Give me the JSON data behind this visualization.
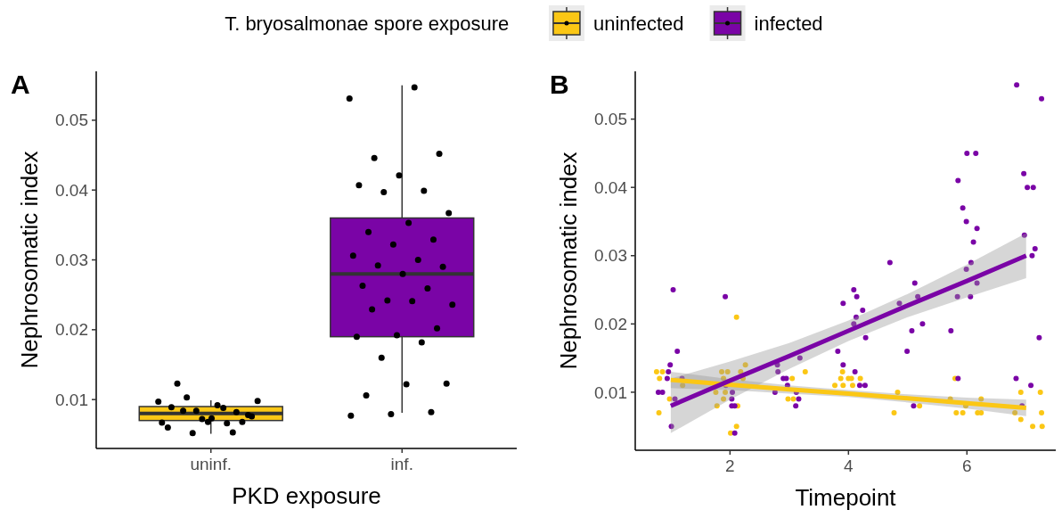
{
  "chart_data": [
    {
      "type": "box",
      "title": "A",
      "xlabel": "PKD exposure",
      "ylabel": "Nephrosomatic index",
      "categories": [
        "uninf.",
        "inf."
      ],
      "colors": [
        "#fbc715",
        "#7a04a6"
      ],
      "boxes": [
        {
          "low": 0.0051,
          "q1": 0.007,
          "median": 0.008,
          "q3": 0.009,
          "high": 0.0099
        },
        {
          "low": 0.0081,
          "q1": 0.019,
          "median": 0.028,
          "q3": 0.036,
          "high": 0.055
        }
      ],
      "series": [
        {
          "type": "scatter",
          "color": "#000000",
          "x": [
            "uninf.",
            "uninf.",
            "uninf.",
            "uninf.",
            "uninf.",
            "uninf.",
            "uninf.",
            "uninf.",
            "uninf.",
            "uninf.",
            "uninf.",
            "uninf.",
            "uninf.",
            "uninf.",
            "uninf.",
            "uninf.",
            "uninf.",
            "uninf.",
            "uninf.",
            "uninf.",
            "uninf."
          ],
          "values": [
            0.0097,
            0.0088,
            0.0084,
            0.0078,
            0.0068,
            0.006,
            0.0053,
            0.0052,
            0.0098,
            0.0092,
            0.0123,
            0.0068,
            0.0072,
            0.0067,
            0.0066,
            0.0103,
            0.0076,
            0.0073,
            0.0089,
            0.0082,
            0.0084
          ]
        },
        {
          "type": "scatter",
          "color": "#000000",
          "x": [
            "inf.",
            "inf.",
            "inf.",
            "inf.",
            "inf.",
            "inf.",
            "inf.",
            "inf.",
            "inf.",
            "inf.",
            "inf.",
            "inf.",
            "inf.",
            "inf.",
            "inf.",
            "inf.",
            "inf.",
            "inf.",
            "inf.",
            "inf.",
            "inf.",
            "inf.",
            "inf.",
            "inf.",
            "inf.",
            "inf.",
            "inf.",
            "inf.",
            "inf.",
            "inf.",
            "inf.",
            "inf.",
            "inf.",
            "inf.",
            "inf."
          ],
          "values": [
            0.0531,
            0.0547,
            0.0446,
            0.0452,
            0.0421,
            0.0407,
            0.0399,
            0.0397,
            0.0367,
            0.0353,
            0.034,
            0.0329,
            0.0322,
            0.0306,
            0.03,
            0.0292,
            0.029,
            0.028,
            0.0263,
            0.0259,
            0.0242,
            0.0236,
            0.0241,
            0.0229,
            0.0202,
            0.0192,
            0.019,
            0.0182,
            0.016,
            0.0123,
            0.0122,
            0.0106,
            0.0082,
            0.0079,
            0.0077
          ]
        }
      ],
      "ylim": [
        0.003,
        0.057
      ],
      "yticks": [
        0.01,
        0.02,
        0.03,
        0.04,
        0.05
      ],
      "marker": "circle"
    },
    {
      "type": "scatter",
      "title": "B",
      "xlabel": "Timepoint",
      "ylabel": "Nephrosomatic index",
      "legend": "top",
      "legend_title": "T. bryosalmonae spore exposure",
      "xlim": [
        0.4,
        7.5
      ],
      "xticks": [
        2,
        4,
        6
      ],
      "ylim": [
        0.0015,
        0.057
      ],
      "yticks": [
        0.01,
        0.02,
        0.03,
        0.04,
        0.05
      ],
      "series": [
        {
          "type": "scatter",
          "name": "uninfected",
          "color": "#fbc715",
          "marker": "circle",
          "x": [
            0.76,
            0.86,
            0.81,
            0.98,
            0.8,
            1.2,
            1.86,
            1.96,
            1.89,
            1.76,
            1.92,
            1.89,
            1.78,
            2.11,
            2.13,
            2.11,
            2.01,
            2.18,
            2.26,
            2.22,
            3.05,
            3.27,
            2.98,
            3.07,
            3.9,
            3.87,
            4.0,
            4.05,
            4.2,
            3.77,
            3.91,
            4.07,
            4.77,
            4.83,
            5.2,
            5.8,
            5.72,
            5.82,
            5.93,
            5.98,
            6.24,
            6.18,
            6.24,
            6.81,
            6.91,
            6.91,
            7.11,
            7.24,
            7.26,
            7.27
          ],
          "values": [
            0.013,
            0.013,
            0.012,
            0.009,
            0.007,
            0.011,
            0.013,
            0.013,
            0.012,
            0.01,
            0.01,
            0.009,
            0.008,
            0.021,
            0.008,
            0.005,
            0.004,
            0.013,
            0.014,
            0.012,
            0.012,
            0.013,
            0.009,
            0.009,
            0.013,
            0.012,
            0.012,
            0.012,
            0.012,
            0.011,
            0.011,
            0.011,
            0.007,
            0.01,
            0.008,
            0.012,
            0.009,
            0.007,
            0.007,
            0.008,
            0.009,
            0.007,
            0.007,
            0.007,
            0.01,
            0.006,
            0.005,
            0.01,
            0.007,
            0.005
          ]
        },
        {
          "type": "scatter",
          "name": "infected",
          "color": "#7a04a6",
          "marker": "circle",
          "x": [
            1.04,
            1.11,
            0.99,
            0.96,
            0.94,
            0.79,
            0.86,
            1.07,
            1.01,
            1.19,
            1.92,
            1.93,
            2.04,
            2.03,
            2.03,
            2.08,
            2.08,
            2.8,
            2.81,
            2.9,
            2.95,
            2.97,
            2.76,
            3.12,
            3.16,
            3.11,
            3.18,
            3.82,
            3.91,
            4.11,
            4.19,
            4.28,
            3.91,
            4.09,
            4.14,
            4.24,
            4.13,
            4.09,
            4.29,
            4.7,
            4.86,
            5.12,
            5.17,
            5.07,
            5.25,
            4.99,
            5.1,
            5.73,
            5.85,
            5.93,
            6.0,
            6.15,
            5.99,
            6.17,
            6.11,
            6.07,
            5.99,
            5.84,
            6.06,
            6.17,
            5.85,
            6.84,
            7.26,
            6.96,
            7.02,
            7.12,
            6.97,
            7.15,
            7.1,
            7.22,
            6.83,
            7.08,
            6.93
          ],
          "values": [
            0.025,
            0.016,
            0.014,
            0.013,
            0.012,
            0.01,
            0.01,
            0.009,
            0.005,
            0.012,
            0.024,
            0.011,
            0.01,
            0.009,
            0.008,
            0.008,
            0.004,
            0.014,
            0.013,
            0.012,
            0.012,
            0.011,
            0.01,
            0.01,
            0.009,
            0.008,
            0.015,
            0.016,
            0.014,
            0.013,
            0.011,
            0.011,
            0.023,
            0.025,
            0.024,
            0.022,
            0.021,
            0.02,
            0.018,
            0.029,
            0.023,
            0.026,
            0.024,
            0.019,
            0.02,
            0.016,
            0.008,
            0.019,
            0.041,
            0.037,
            0.045,
            0.045,
            0.035,
            0.034,
            0.032,
            0.029,
            0.028,
            0.024,
            0.024,
            0.026,
            0.012,
            0.055,
            0.053,
            0.042,
            0.04,
            0.04,
            0.033,
            0.031,
            0.03,
            0.018,
            0.012,
            0.011,
            0.008
          ]
        },
        {
          "type": "line",
          "color": "#fbc715",
          "marker": "none",
          "x": [
            1,
            2,
            3,
            4,
            5,
            6,
            7
          ],
          "values": [
            0.0118,
            0.0111,
            0.0104,
            0.0098,
            0.0091,
            0.0084,
            0.0077
          ],
          "lower": [
            0.0106,
            0.0103,
            0.0098,
            0.0093,
            0.0085,
            0.0076,
            0.0065
          ],
          "upper": [
            0.013,
            0.0119,
            0.011,
            0.0103,
            0.0097,
            0.0092,
            0.0089
          ]
        },
        {
          "type": "line",
          "color": "#7a04a6",
          "marker": "none",
          "x": [
            1,
            2,
            3,
            4,
            5,
            6,
            7
          ],
          "values": [
            0.008,
            0.0117,
            0.0153,
            0.019,
            0.0227,
            0.0263,
            0.03
          ],
          "lower": [
            0.004,
            0.0089,
            0.0134,
            0.0175,
            0.021,
            0.0239,
            0.0267
          ],
          "upper": [
            0.012,
            0.0145,
            0.0172,
            0.0205,
            0.0244,
            0.0287,
            0.0333
          ]
        }
      ]
    }
  ]
}
